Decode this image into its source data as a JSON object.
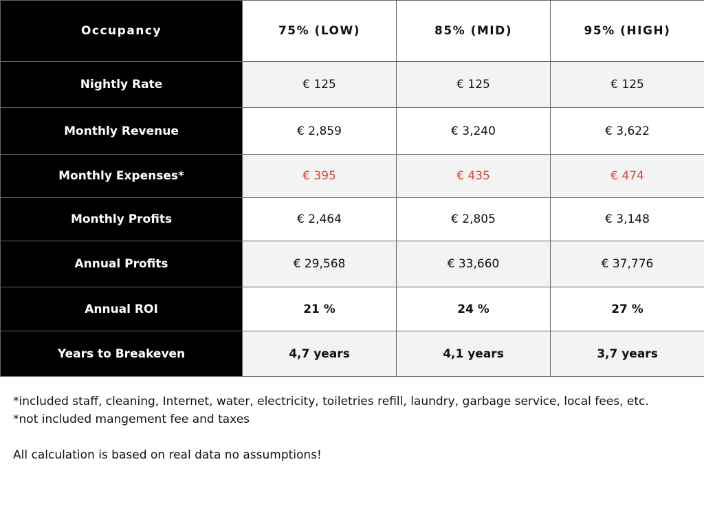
{
  "table": {
    "header": [
      "Occupancy",
      "75% (LOW)",
      "85% (MID)",
      "95% (HIGH)"
    ],
    "rows": [
      [
        "Nightly Rate",
        "€ 125",
        "€ 125",
        "€ 125"
      ],
      [
        "Monthly Revenue",
        "€ 2,859",
        "€ 3,240",
        "€ 3,622"
      ],
      [
        "Monthly Expenses*",
        "€ 395",
        "€ 435",
        "€ 474"
      ],
      [
        "Monthly Profits",
        "€ 2,464",
        "€ 2,805",
        "€ 3,148"
      ],
      [
        "Annual Profits",
        "€ 29,568",
        "€ 33,660",
        "€ 37,776"
      ],
      [
        "Annual ROI",
        "21 %",
        "24 %",
        "27 %"
      ],
      [
        "Years to Breakeven",
        "4,7 years",
        "4,1 years",
        "3,7 years"
      ]
    ]
  },
  "notes": [
    "*included staff, cleaning, Internet, water, electricity, toiletries refill, laundry, garbage service, local fees, etc.",
    "*not included mangement fee and taxes",
    "All calculation is based on real data no assumptions!"
  ]
}
